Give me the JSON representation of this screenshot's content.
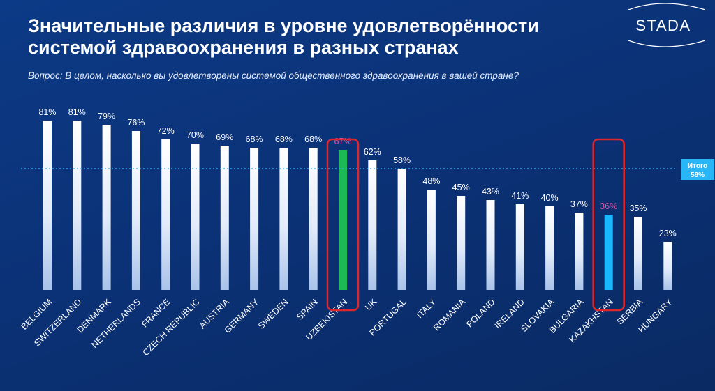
{
  "header": {
    "title_line1": "Значительные различия в уровне удовлетворённости",
    "title_line2": "системой здравоохранения в разных странах",
    "question": "Вопрос: В целом, насколько вы удовлетворены системой общественного здравоохранения в вашей стране?"
  },
  "logo": {
    "text": "STADA"
  },
  "colors": {
    "background": "#0b3277",
    "bar_default_top": "#ffffff",
    "bar_default_bottom": "#a9c3ea",
    "highlight_green": "#1db954",
    "highlight_blue": "#1ab8ff",
    "highlight_label": "#e14fa6",
    "highlight_box": "#e0262d",
    "average_line": "#29b6f6"
  },
  "chart_data": {
    "type": "bar",
    "categories": [
      "BELGIUM",
      "SWITZERLAND",
      "DENMARK",
      "NETHERLANDS",
      "FRANCE",
      "CZECH REPUBLIC",
      "AUSTRIA",
      "GERMANY",
      "SWEDEN",
      "SPAIN",
      "UZBEKISTAN",
      "UK",
      "PORTUGAL",
      "ITALY",
      "ROMANIA",
      "POLAND",
      "IRELAND",
      "SLOVAKIA",
      "BULGARIA",
      "KAZAKHSTAN",
      "SERBIA",
      "HUNGARY"
    ],
    "values": [
      81,
      81,
      79,
      76,
      72,
      70,
      69,
      68,
      68,
      68,
      67,
      62,
      58,
      48,
      45,
      43,
      41,
      40,
      37,
      36,
      35,
      23
    ],
    "value_labels": [
      "81%",
      "81%",
      "79%",
      "76%",
      "72%",
      "70%",
      "69%",
      "68%",
      "68%",
      "68%",
      "67%",
      "62%",
      "58%",
      "48%",
      "45%",
      "43%",
      "41%",
      "40%",
      "37%",
      "36%",
      "35%",
      "23%"
    ],
    "highlighted": {
      "UZBEKISTAN": "green",
      "KAZAKHSTAN": "blue"
    },
    "average": {
      "value": 58,
      "label_line1": "Итого",
      "label_line2": "58%"
    },
    "title": "",
    "xlabel": "",
    "ylabel": "",
    "ylim": [
      0,
      100
    ],
    "grid": false,
    "legend": "none"
  }
}
